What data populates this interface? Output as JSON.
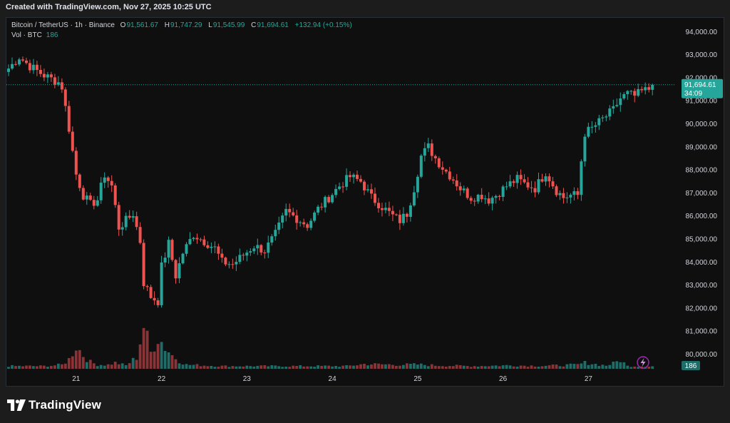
{
  "header": {
    "created_text": "Created with TradingView.com, Nov 27, 2025 10:25 UTC"
  },
  "legend": {
    "symbol": "Bitcoin / TetherUS · 1h · Binance",
    "o_label": "O",
    "o_value": "91,561.67",
    "h_label": "H",
    "h_value": "91,747.29",
    "l_label": "L",
    "l_value": "91,545.99",
    "c_label": "C",
    "c_value": "91,694.61",
    "change": "+132.94 (+0.15%)",
    "vol_label": "Vol · BTC",
    "vol_value": "186"
  },
  "price_tag": {
    "price": "91,694.61",
    "countdown": "34:09"
  },
  "volume_tag": "186",
  "brand": "TradingView",
  "icons": {
    "brand_logo": "tradingview-logo-icon",
    "flash": "lightning-icon"
  },
  "colors": {
    "up": "#26a69a",
    "down": "#ef5350",
    "up_vol": "#1f6d68",
    "down_vol": "#8a3437",
    "background": "#0f0f0f"
  },
  "chart_data": {
    "type": "candlestick",
    "interval": "1h",
    "yticks": [
      80000,
      81000,
      82000,
      83000,
      84000,
      85000,
      86000,
      87000,
      88000,
      89000,
      90000,
      91000,
      92000,
      93000,
      94000
    ],
    "ytick_labels": [
      "80,000.00",
      "81,000.00",
      "82,000.00",
      "83,000.00",
      "84,000.00",
      "85,000.00",
      "86,000.00",
      "87,000.00",
      "88,000.00",
      "89,000.00",
      "90,000.00",
      "91,000.00",
      "92,000.00",
      "93,000.00",
      "94,000.00"
    ],
    "xtick_labels": [
      "21",
      "22",
      "23",
      "24",
      "25",
      "26",
      "27"
    ],
    "ylim": [
      79600,
      94300
    ],
    "last_price": 91694.61,
    "close_path": [
      [
        0,
        92400
      ],
      [
        3,
        92900
      ],
      [
        6,
        92500
      ],
      [
        10,
        92100
      ],
      [
        14,
        91800
      ],
      [
        15,
        91600
      ],
      [
        17,
        89800
      ],
      [
        19,
        87800
      ],
      [
        21,
        86900
      ],
      [
        23,
        86500
      ],
      [
        25,
        86700
      ],
      [
        27,
        87800
      ],
      [
        29,
        87300
      ],
      [
        31,
        85500
      ],
      [
        33,
        85800
      ],
      [
        35,
        86100
      ],
      [
        37,
        84900
      ],
      [
        38,
        83100
      ],
      [
        40,
        82500
      ],
      [
        42,
        82300
      ],
      [
        43,
        83800
      ],
      [
        45,
        84800
      ],
      [
        47,
        83400
      ],
      [
        49,
        84400
      ],
      [
        52,
        85200
      ],
      [
        55,
        84900
      ],
      [
        58,
        84600
      ],
      [
        60,
        84000
      ],
      [
        63,
        83900
      ],
      [
        66,
        84300
      ],
      [
        69,
        84700
      ],
      [
        72,
        84500
      ],
      [
        75,
        85200
      ],
      [
        78,
        86200
      ],
      [
        81,
        85900
      ],
      [
        84,
        85600
      ],
      [
        87,
        86300
      ],
      [
        90,
        86800
      ],
      [
        93,
        87300
      ],
      [
        96,
        87700
      ],
      [
        99,
        87500
      ],
      [
        102,
        86800
      ],
      [
        105,
        86400
      ],
      [
        108,
        86000
      ],
      [
        110,
        85800
      ],
      [
        112,
        86100
      ],
      [
        114,
        87200
      ],
      [
        116,
        88600
      ],
      [
        118,
        89000
      ],
      [
        120,
        88500
      ],
      [
        122,
        88100
      ],
      [
        125,
        87600
      ],
      [
        127,
        87200
      ],
      [
        130,
        86800
      ],
      [
        133,
        86900
      ],
      [
        135,
        86700
      ],
      [
        137,
        86900
      ],
      [
        140,
        87300
      ],
      [
        143,
        87600
      ],
      [
        145,
        87400
      ],
      [
        148,
        87200
      ],
      [
        151,
        87900
      ],
      [
        154,
        87100
      ],
      [
        156,
        86800
      ],
      [
        158,
        86900
      ],
      [
        160,
        86900
      ],
      [
        161,
        88400
      ],
      [
        162,
        89600
      ],
      [
        164,
        89800
      ],
      [
        167,
        90200
      ],
      [
        170,
        90600
      ],
      [
        172,
        91100
      ],
      [
        174,
        91300
      ],
      [
        176,
        91200
      ],
      [
        178,
        91400
      ],
      [
        180,
        91500
      ],
      [
        181,
        91695
      ]
    ],
    "volume_peaks": [
      [
        0,
        200
      ],
      [
        10,
        200
      ],
      [
        15,
        300
      ],
      [
        17,
        700
      ],
      [
        19,
        1700
      ],
      [
        21,
        1000
      ],
      [
        23,
        500
      ],
      [
        25,
        300
      ],
      [
        28,
        300
      ],
      [
        30,
        450
      ],
      [
        33,
        250
      ],
      [
        36,
        850
      ],
      [
        38,
        3200
      ],
      [
        40,
        1200
      ],
      [
        42,
        2400
      ],
      [
        44,
        1600
      ],
      [
        46,
        1000
      ],
      [
        48,
        600
      ],
      [
        50,
        300
      ],
      [
        60,
        200
      ],
      [
        80,
        200
      ],
      [
        95,
        200
      ],
      [
        100,
        350
      ],
      [
        110,
        300
      ],
      [
        115,
        320
      ],
      [
        120,
        250
      ],
      [
        130,
        200
      ],
      [
        140,
        250
      ],
      [
        150,
        220
      ],
      [
        155,
        250
      ],
      [
        160,
        300
      ],
      [
        162,
        450
      ],
      [
        164,
        380
      ],
      [
        166,
        300
      ],
      [
        168,
        250
      ],
      [
        170,
        400
      ],
      [
        172,
        650
      ],
      [
        174,
        200
      ],
      [
        181,
        186
      ]
    ],
    "volume_scale_max": 3400,
    "candles_per_day": 24,
    "day_starts": [
      19,
      43,
      67,
      91,
      115,
      139,
      163
    ]
  }
}
